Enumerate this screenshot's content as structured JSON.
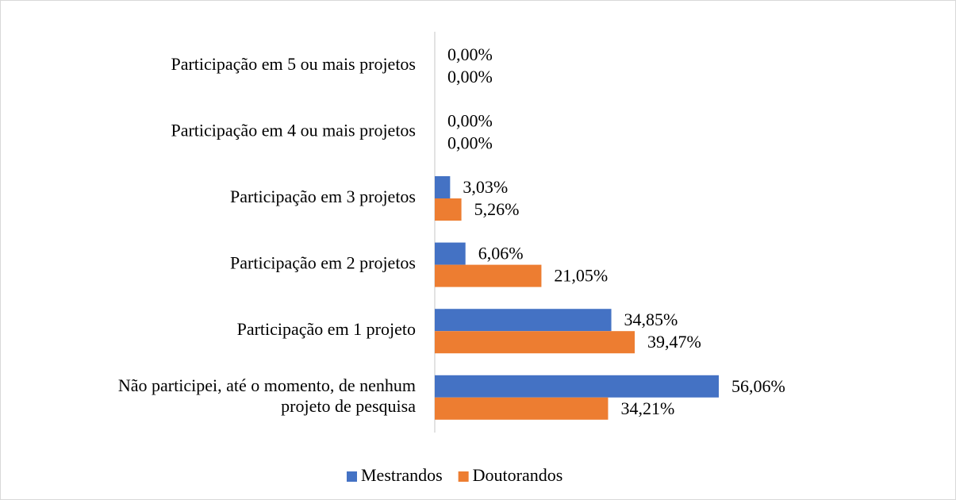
{
  "chart_data": {
    "type": "hbar",
    "categories": [
      "Participação em 5 ou mais projetos",
      "Participação em 4 ou mais projetos",
      "Participação em 3 projetos",
      "Participação em 2 projetos",
      "Participação em 1 projeto",
      "Não participei, até o momento, de nenhum\nprojeto de pesquisa"
    ],
    "series": [
      {
        "name": "Mestrandos",
        "color": "#4472c4",
        "values": [
          0,
          0,
          3.03,
          6.06,
          34.85,
          56.06
        ],
        "value_labels": [
          "0,00%",
          "0,00%",
          "3,03%",
          "6,06%",
          "34,85%",
          "56,06%"
        ]
      },
      {
        "name": "Doutorandos",
        "color": "#ed7d31",
        "values": [
          0,
          0,
          5.26,
          21.05,
          39.47,
          34.21
        ],
        "value_labels": [
          "0,00%",
          "0,00%",
          "5,26%",
          "21,05%",
          "39,47%",
          "34,21%"
        ]
      }
    ],
    "legend": "bottom"
  }
}
